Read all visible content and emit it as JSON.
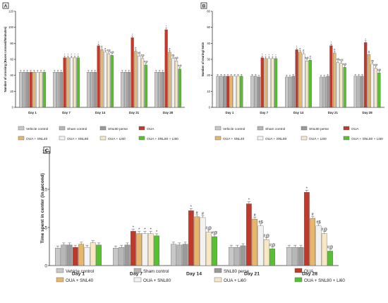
{
  "colors": {
    "vehicle": "#c8c8c8",
    "sham": "#b7b7b7",
    "snl80": "#9a9a9a",
    "oua": "#c0392b",
    "oua_snl40": "#e6b76a",
    "oua_snl80": "#f2f2f2",
    "oua_li60": "#f7e7c4",
    "oua_snl80_li60": "#55c12f",
    "marker": "#e0309a"
  },
  "legend_labels": [
    "Vehicle control",
    "Sham control",
    "SNL80 perse",
    "OUA",
    "OUA + SNL40",
    "OUA + SNL80",
    "OUA + Li60",
    "OUA + SNL80 + Li60"
  ],
  "chart_data": [
    {
      "panel": "A",
      "type": "bar",
      "ylabel": "Number of crossing (Boxes crossed/5minutes)",
      "ylim": [
        0,
        120
      ],
      "yticks": [
        0,
        20,
        40,
        60,
        80,
        100,
        120
      ],
      "categories": [
        "Day 1",
        "Day 7",
        "Day 14",
        "Day 21",
        "Day 28"
      ],
      "series": [
        {
          "name": "Vehicle control",
          "values": [
            44,
            44,
            44,
            44,
            44
          ]
        },
        {
          "name": "Sham control",
          "values": [
            44,
            44,
            44,
            44,
            44
          ]
        },
        {
          "name": "SNL80 perse",
          "values": [
            44,
            44,
            44,
            44,
            44
          ]
        },
        {
          "name": "OUA",
          "values": [
            44,
            62,
            77,
            87,
            97
          ]
        },
        {
          "name": "OUA + SNL40",
          "values": [
            44,
            62,
            72,
            70,
            69
          ]
        },
        {
          "name": "OUA + SNL80",
          "values": [
            44,
            62,
            69,
            64,
            61
          ]
        },
        {
          "name": "OUA + Li60",
          "values": [
            44,
            62,
            67,
            61,
            58
          ]
        },
        {
          "name": "OUA + SNL80 + Li60",
          "values": [
            44,
            62,
            65,
            53,
            48
          ]
        }
      ],
      "annotations": [
        [
          "",
          "",
          "",
          "",
          "",
          "",
          "",
          ""
        ],
        [
          "",
          "",
          "",
          "*",
          "*",
          "*",
          "*",
          "*"
        ],
        [
          "",
          "",
          "",
          "*",
          "#",
          "#",
          "#@",
          "#@"
        ],
        [
          "",
          "",
          "",
          "*",
          "#",
          "#$",
          "#@",
          "#@"
        ],
        [
          "",
          "",
          "",
          "*",
          "#",
          "#$",
          "#@",
          "#@"
        ]
      ]
    },
    {
      "panel": "B",
      "type": "bar",
      "ylabel": "Number of rearing/ 5min",
      "ylim": [
        0,
        60
      ],
      "yticks": [
        0,
        10,
        20,
        30,
        40,
        50,
        60
      ],
      "categories": [
        "Day 1",
        "Day 7",
        "Day 14",
        "Day 21",
        "Day 28"
      ],
      "series": [
        {
          "name": "Vehicle control",
          "values": [
            19.5,
            19.5,
            19,
            19,
            19.5
          ]
        },
        {
          "name": "Sham control",
          "values": [
            19.5,
            19.5,
            19,
            19,
            19.5
          ]
        },
        {
          "name": "SNL80 perse",
          "values": [
            19.5,
            19,
            19.5,
            19.5,
            19.5
          ]
        },
        {
          "name": "OUA",
          "values": [
            19.5,
            31,
            36,
            38.5,
            40.5
          ]
        },
        {
          "name": "OUA + SNL40",
          "values": [
            19.5,
            30.5,
            34.5,
            34,
            33
          ]
        },
        {
          "name": "OUA + SNL80",
          "values": [
            19.5,
            30.5,
            33.5,
            28,
            27
          ]
        },
        {
          "name": "OUA + Li60",
          "values": [
            19.5,
            30.5,
            29,
            27.5,
            24.5
          ]
        },
        {
          "name": "OUA + SNL80 + Li60",
          "values": [
            19.5,
            30.5,
            29.5,
            25,
            21.5
          ]
        }
      ],
      "annotations": [
        [
          "",
          "",
          "",
          "",
          "",
          "",
          "",
          ""
        ],
        [
          "",
          "",
          "",
          "*",
          "*",
          "*",
          "*",
          "*"
        ],
        [
          "",
          "",
          "",
          "*",
          "#",
          "#",
          "#@",
          "#"
        ],
        [
          "",
          "",
          "",
          "*",
          "#",
          "#$",
          "#@",
          "#@"
        ],
        [
          "",
          "",
          "",
          "*",
          "#",
          "#$",
          "#@",
          "#@"
        ]
      ]
    },
    {
      "panel": "C",
      "type": "bar",
      "ylabel": "Time spent in center (in second)",
      "ylim": [
        0,
        15
      ],
      "yticks": [
        0,
        5,
        10,
        15
      ],
      "categories": [
        "Day 1",
        "Day 7",
        "Day 14",
        "Day 21",
        "Day 28"
      ],
      "series": [
        {
          "name": "Vehicle control",
          "values": [
            2.3,
            2.3,
            2.8,
            2.4,
            2.4
          ]
        },
        {
          "name": "Sham control",
          "values": [
            2.7,
            2.4,
            2.7,
            2.4,
            2.4
          ]
        },
        {
          "name": "SNL80 perse",
          "values": [
            2.7,
            2.7,
            2.8,
            2.6,
            2.4
          ]
        },
        {
          "name": "OUA",
          "values": [
            2.4,
            4.5,
            7.2,
            8.1,
            9.6
          ]
        },
        {
          "name": "OUA + SNL40",
          "values": [
            2.8,
            4.2,
            6.4,
            6.1,
            6.2
          ]
        },
        {
          "name": "OUA + SNL80",
          "values": [
            2.4,
            4.2,
            6.3,
            5.2,
            5.2
          ]
        },
        {
          "name": "OUA + Li60",
          "values": [
            3.0,
            4.2,
            4.4,
            3.4,
            4.2
          ]
        },
        {
          "name": "OUA + SNL80 + Li60",
          "values": [
            2.7,
            3.9,
            3.8,
            2.2,
            1.9
          ]
        }
      ],
      "annotations": [
        [
          "",
          "",
          "",
          "",
          "",
          "",
          "",
          ""
        ],
        [
          "",
          "",
          "",
          "*",
          "*",
          "*",
          "*",
          "*"
        ],
        [
          "",
          "",
          "",
          "*",
          "#",
          "#",
          "#@",
          "#@"
        ],
        [
          "",
          "",
          "",
          "*",
          "#",
          "#$",
          "#@",
          "#@"
        ],
        [
          "",
          "",
          "",
          "*",
          "#",
          "#$",
          "#@",
          "#@"
        ]
      ]
    }
  ]
}
